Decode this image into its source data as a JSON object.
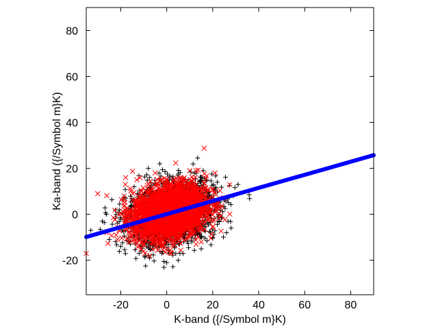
{
  "chart_data": {
    "type": "scatter",
    "xlabel": "K-band ({/Symbol m}K)",
    "ylabel": "Ka-band ({/Symbol m}K)",
    "xlim": [
      -35,
      90
    ],
    "ylim": [
      -35,
      90
    ],
    "xticks": [
      -20,
      0,
      20,
      40,
      60,
      80
    ],
    "yticks": [
      -20,
      0,
      20,
      40,
      60,
      80
    ],
    "xtick_labels": [
      "-20",
      "0",
      "20",
      "40",
      "60",
      "80"
    ],
    "ytick_labels": [
      "-20",
      "0",
      "20",
      "40",
      "60",
      "80"
    ],
    "grid": false,
    "legend": "none",
    "series": [
      {
        "marker": "plus",
        "color": "#000000",
        "cloud": {
          "center": [
            2,
            0
          ],
          "std": [
            9.5,
            7
          ],
          "correlation": 0.25,
          "count": 1800
        },
        "points": [
          [
            -33,
            -7
          ],
          [
            -25,
            -11
          ],
          [
            -16,
            -12
          ],
          [
            -12,
            -17
          ],
          [
            -8,
            20
          ],
          [
            -3,
            22
          ],
          [
            0,
            -21
          ],
          [
            5,
            -20
          ],
          [
            12,
            18
          ],
          [
            22,
            14
          ],
          [
            26,
            -8
          ],
          [
            28,
            -6
          ],
          [
            31,
            13
          ],
          [
            29,
            8
          ],
          [
            20,
            -10
          ],
          [
            -20,
            -14
          ],
          [
            -28,
            -3
          ],
          [
            15,
            -15
          ]
        ]
      },
      {
        "marker": "cross",
        "color": "#ff0000",
        "cloud": {
          "center": [
            1,
            1
          ],
          "std": [
            8,
            6
          ],
          "correlation": 0.25,
          "count": 2600
        },
        "points": [
          [
            -35,
            -17
          ],
          [
            -30,
            9
          ],
          [
            -22,
            -9
          ],
          [
            -18,
            13
          ],
          [
            -10,
            -16
          ],
          [
            -5,
            18
          ],
          [
            2,
            -17
          ],
          [
            10,
            19
          ],
          [
            15,
            -12
          ],
          [
            21,
            18
          ],
          [
            25,
            7
          ],
          [
            20,
            -3
          ],
          [
            -26,
            -8
          ],
          [
            -13,
            15
          ]
        ]
      },
      {
        "marker": "dot",
        "color": "#0000ff",
        "line": {
          "slope": 0.285,
          "intercept": 0.1,
          "x_start": -35,
          "x_end": 90,
          "count": 320
        }
      }
    ]
  }
}
